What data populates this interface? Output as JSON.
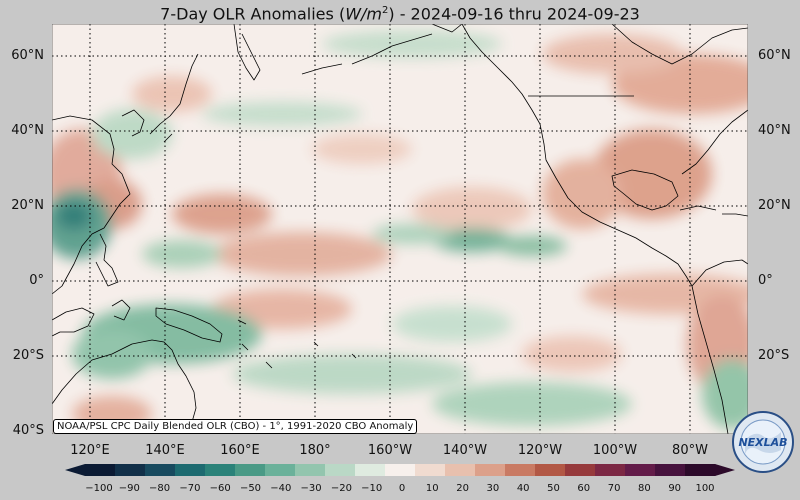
{
  "title": {
    "pre": "7-Day OLR Anomalies (",
    "unit_var": "W/m",
    "unit_exp": "2",
    "post": ") - 2024-09-16 thru 2024-09-23"
  },
  "lat_labels": [
    "60°N",
    "40°N",
    "20°N",
    "0°",
    "20°S",
    "40°S"
  ],
  "lon_labels": [
    "120°E",
    "140°E",
    "160°E",
    "180°",
    "160°W",
    "140°W",
    "120°W",
    "100°W",
    "80°W"
  ],
  "credit": "NOAA/PSL CPC Daily Blended OLR (CBO) - 1°, 1991-2020 CBO Anomaly",
  "colorbar": {
    "ticks": [
      "−100",
      "−90",
      "−80",
      "−70",
      "−60",
      "−50",
      "−40",
      "−30",
      "−20",
      "−10",
      "0",
      "10",
      "20",
      "30",
      "40",
      "50",
      "60",
      "70",
      "80",
      "90",
      "100"
    ],
    "colors": [
      "#0b1a33",
      "#123049",
      "#184a5f",
      "#1d6a70",
      "#2b8279",
      "#4a9a86",
      "#6bb19a",
      "#93c5ae",
      "#bad8c6",
      "#dfebe0",
      "#f7f0ec",
      "#f0dbd0",
      "#e8c0ae",
      "#dca08a",
      "#c97a63",
      "#b25845",
      "#963a3c",
      "#7c2844",
      "#631c49",
      "#46123d",
      "#2c0a2a"
    ]
  },
  "logo": {
    "text": "NEXLAB"
  },
  "colors": {
    "background": "#c8c8c8",
    "neutral": "#f7efec",
    "positive": "#e0a792",
    "negative": "#8fc4a2"
  }
}
